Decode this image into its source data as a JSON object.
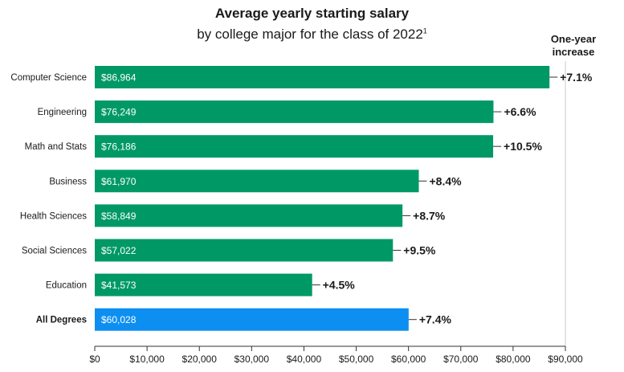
{
  "title": "Average yearly starting salary",
  "subtitle": "by college major for the class of 2022",
  "subtitle_footnote": "1",
  "increase_header_line1": "One-year",
  "increase_header_line2": "increase",
  "colors": {
    "bar": "#009966",
    "highlight_bar": "#0d8ff2",
    "text": "#1a1a1a",
    "grid": "#c8c8c8"
  },
  "chart_data": {
    "type": "bar",
    "orientation": "horizontal",
    "title": "Average yearly starting salary",
    "subtitle": "by college major for the class of 2022",
    "categories": [
      "Computer Science",
      "Engineering",
      "Math and Stats",
      "Business",
      "Health Sciences",
      "Social Sciences",
      "Education",
      "All Degrees"
    ],
    "values": [
      86964,
      76249,
      76186,
      61970,
      58849,
      57022,
      41573,
      60028
    ],
    "value_labels": [
      "$86,964",
      "$76,249",
      "$76,186",
      "$61,970",
      "$58,849",
      "$57,022",
      "$41,573",
      "$60,028"
    ],
    "increase_labels": [
      "+7.1%",
      "+6.6%",
      "+10.5%",
      "+8.4%",
      "+8.7%",
      "+9.5%",
      "+4.5%",
      "+7.4%"
    ],
    "highlight_category": "All Degrees",
    "xlim": [
      0,
      90000
    ],
    "xticks": [
      0,
      10000,
      20000,
      30000,
      40000,
      50000,
      60000,
      70000,
      80000,
      90000
    ],
    "xtick_labels": [
      "$0",
      "$10,000",
      "$20,000",
      "$30,000",
      "$40,000",
      "$50,000",
      "$60,000",
      "$70,000",
      "$80,000",
      "$90,000"
    ],
    "grid": "vertical line at the $90,000 tick only",
    "legend": "none"
  }
}
